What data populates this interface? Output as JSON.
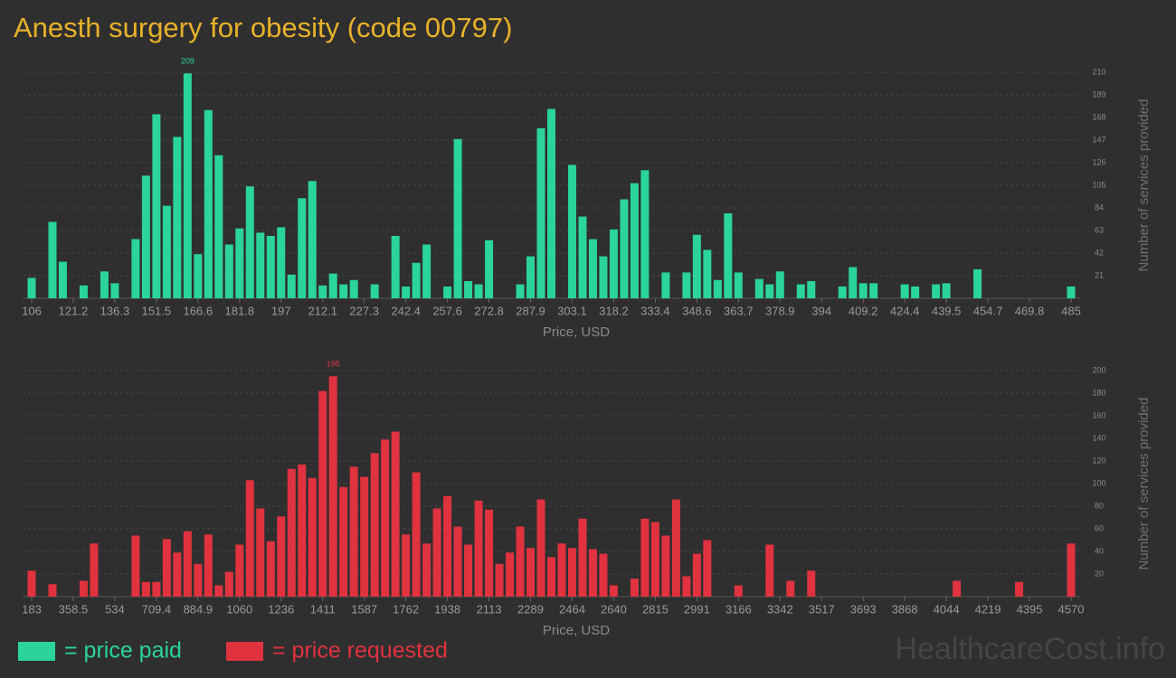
{
  "title": "Anesth surgery for obesity (code 00797)",
  "watermark": "HealthcareCost.info",
  "chart_data": [
    {
      "type": "bar",
      "xlabel": "Price, USD",
      "ylabel": "Number of services provided",
      "categories": [
        "106",
        null,
        null,
        null,
        "121.2",
        null,
        null,
        null,
        "136.3",
        null,
        null,
        null,
        "151.5",
        null,
        null,
        null,
        "166.6",
        null,
        null,
        null,
        "181.8",
        null,
        null,
        null,
        "197",
        null,
        null,
        null,
        "212.1",
        null,
        null,
        null,
        "227.3",
        null,
        null,
        null,
        "242.4",
        null,
        null,
        null,
        "257.6",
        null,
        null,
        null,
        "272.8",
        null,
        null,
        null,
        "287.9",
        null,
        null,
        null,
        "303.1",
        null,
        null,
        null,
        "318.2",
        null,
        null,
        null,
        "333.4",
        null,
        null,
        null,
        "348.6",
        null,
        null,
        null,
        "363.7",
        null,
        null,
        null,
        "378.9",
        null,
        null,
        null,
        "394",
        null,
        null,
        null,
        "409.2",
        null,
        null,
        null,
        "424.4",
        null,
        null,
        null,
        "439.5",
        null,
        null,
        null,
        "454.7",
        null,
        null,
        null,
        "469.8",
        null,
        null,
        null,
        "485"
      ],
      "series": [
        {
          "name": "= price paid",
          "color": "#2ad49a",
          "values": [
            19,
            0,
            71,
            34,
            0,
            12,
            0,
            25,
            14,
            0,
            55,
            114,
            171,
            86,
            150,
            209,
            41,
            175,
            133,
            50,
            65,
            104,
            61,
            58,
            66,
            22,
            93,
            109,
            12,
            23,
            13,
            17,
            0,
            13,
            0,
            58,
            11,
            33,
            50,
            0,
            11,
            148,
            16,
            13,
            54,
            0,
            0,
            13,
            39,
            158,
            176,
            0,
            124,
            76,
            55,
            39,
            64,
            92,
            107,
            119,
            0,
            24,
            0,
            24,
            59,
            45,
            17,
            79,
            24,
            0,
            18,
            13,
            25,
            0,
            13,
            16,
            0,
            0,
            11,
            29,
            14,
            14,
            0,
            0,
            13,
            11,
            0,
            13,
            14,
            0,
            0,
            27,
            0,
            0,
            0,
            0,
            0,
            0,
            0,
            0,
            11
          ]
        }
      ],
      "ylim": [
        0,
        210
      ],
      "yticks": [
        21,
        42,
        63,
        84,
        105,
        126,
        147,
        168,
        189,
        210
      ],
      "grid": true
    },
    {
      "type": "bar",
      "xlabel": "Price, USD",
      "ylabel": "Number of services provided",
      "categories": [
        "183",
        null,
        null,
        null,
        "358.5",
        null,
        null,
        null,
        "534",
        null,
        null,
        null,
        "709.4",
        null,
        null,
        null,
        "884.9",
        null,
        null,
        null,
        "1060",
        null,
        null,
        null,
        "1236",
        null,
        null,
        null,
        "1411",
        null,
        null,
        null,
        "1587",
        null,
        null,
        null,
        "1762",
        null,
        null,
        null,
        "1938",
        null,
        null,
        null,
        "2113",
        null,
        null,
        null,
        "2289",
        null,
        null,
        null,
        "2464",
        null,
        null,
        null,
        "2640",
        null,
        null,
        null,
        "2815",
        null,
        null,
        null,
        "2991",
        null,
        null,
        null,
        "3166",
        null,
        null,
        null,
        "3342",
        null,
        null,
        null,
        "3517",
        null,
        null,
        null,
        "3693",
        null,
        null,
        null,
        "3868",
        null,
        null,
        null,
        "4044",
        null,
        null,
        null,
        "4219",
        null,
        null,
        null,
        "4395",
        null,
        null,
        null,
        "4570"
      ],
      "series": [
        {
          "name": "= price requested",
          "color": "#e0323f",
          "values": [
            23,
            0,
            11,
            0,
            0,
            14,
            47,
            0,
            0,
            0,
            54,
            13,
            13,
            51,
            39,
            58,
            29,
            55,
            10,
            22,
            46,
            103,
            78,
            49,
            71,
            113,
            117,
            105,
            182,
            195,
            97,
            115,
            106,
            127,
            139,
            146,
            55,
            110,
            47,
            78,
            89,
            62,
            46,
            85,
            77,
            29,
            39,
            62,
            43,
            86,
            35,
            47,
            43,
            69,
            42,
            38,
            10,
            0,
            16,
            69,
            66,
            54,
            86,
            18,
            38,
            50,
            0,
            0,
            10,
            0,
            0,
            46,
            0,
            14,
            0,
            23,
            0,
            0,
            0,
            0,
            0,
            0,
            0,
            0,
            0,
            0,
            0,
            0,
            0,
            14,
            0,
            0,
            0,
            0,
            0,
            13,
            0,
            0,
            0,
            0,
            47
          ]
        }
      ],
      "ylim": [
        0,
        200
      ],
      "yticks": [
        20,
        40,
        60,
        80,
        100,
        120,
        140,
        160,
        180,
        200
      ],
      "grid": true
    }
  ]
}
